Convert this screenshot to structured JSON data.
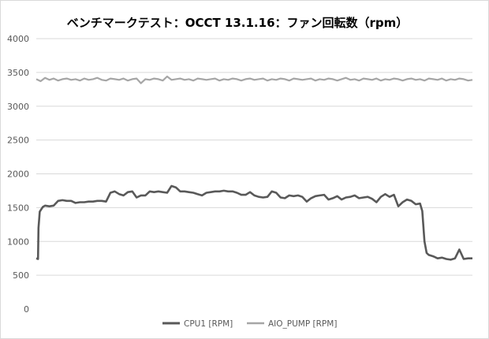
{
  "chart_data": {
    "type": "line",
    "title": "ベンチマークテスト：OCCT 13.1.16：ファン回転数（rpm）",
    "xlabel": "",
    "ylabel": "",
    "ylim": [
      0,
      4000
    ],
    "yticks": [
      0,
      500,
      1000,
      1500,
      2000,
      2500,
      3000,
      3500,
      4000
    ],
    "grid": "horizontal",
    "legend": "bottom",
    "x_range": [
      0,
      100
    ],
    "series": [
      {
        "name": "CPU1 [RPM]",
        "color": "#595959",
        "x": [
          0,
          0.4,
          0.5,
          0.8,
          1.2,
          1.5,
          2,
          3,
          4,
          5,
          6,
          7,
          8,
          9,
          10,
          11,
          12,
          13,
          14,
          15,
          16,
          17,
          18,
          19,
          20,
          21,
          22,
          23,
          24,
          25,
          26,
          27,
          28,
          29,
          30,
          31,
          32,
          33,
          34,
          35,
          36,
          37,
          38,
          39,
          40,
          41,
          42,
          43,
          44,
          45,
          46,
          47,
          48,
          49,
          50,
          51,
          52,
          53,
          54,
          55,
          56,
          57,
          58,
          59,
          60,
          61,
          62,
          63,
          64,
          65,
          66,
          67,
          68,
          69,
          70,
          71,
          72,
          73,
          74,
          75,
          76,
          77,
          78,
          79,
          80,
          81,
          82,
          83,
          84,
          85,
          86,
          87,
          88,
          88.5,
          89,
          89.5,
          90,
          91,
          92,
          93,
          94,
          95,
          96,
          97,
          98,
          99,
          100
        ],
        "values": [
          750,
          740,
          1200,
          1440,
          1480,
          1510,
          1530,
          1520,
          1530,
          1600,
          1610,
          1600,
          1600,
          1570,
          1580,
          1580,
          1590,
          1590,
          1600,
          1600,
          1590,
          1720,
          1740,
          1700,
          1680,
          1730,
          1740,
          1650,
          1680,
          1680,
          1740,
          1730,
          1740,
          1730,
          1720,
          1820,
          1800,
          1740,
          1740,
          1730,
          1720,
          1700,
          1680,
          1720,
          1730,
          1740,
          1740,
          1750,
          1740,
          1740,
          1720,
          1690,
          1690,
          1730,
          1680,
          1660,
          1650,
          1660,
          1740,
          1720,
          1650,
          1640,
          1680,
          1670,
          1680,
          1660,
          1590,
          1640,
          1670,
          1680,
          1690,
          1620,
          1640,
          1670,
          1620,
          1650,
          1660,
          1680,
          1640,
          1650,
          1660,
          1630,
          1580,
          1660,
          1700,
          1660,
          1690,
          1520,
          1580,
          1620,
          1600,
          1550,
          1560,
          1450,
          1000,
          830,
          800,
          780,
          750,
          760,
          740,
          730,
          750,
          880,
          740,
          750,
          750
        ]
      },
      {
        "name": "AIO_PUMP [RPM]",
        "color": "#a6a6a6",
        "x": [
          0,
          1,
          2,
          3,
          4,
          5,
          6,
          7,
          8,
          9,
          10,
          11,
          12,
          13,
          14,
          15,
          16,
          17,
          18,
          19,
          20,
          21,
          22,
          23,
          24,
          25,
          26,
          27,
          28,
          29,
          30,
          31,
          32,
          33,
          34,
          35,
          36,
          37,
          38,
          39,
          40,
          41,
          42,
          43,
          44,
          45,
          46,
          47,
          48,
          49,
          50,
          51,
          52,
          53,
          54,
          55,
          56,
          57,
          58,
          59,
          60,
          61,
          62,
          63,
          64,
          65,
          66,
          67,
          68,
          69,
          70,
          71,
          72,
          73,
          74,
          75,
          76,
          77,
          78,
          79,
          80,
          81,
          82,
          83,
          84,
          85,
          86,
          87,
          88,
          89,
          90,
          91,
          92,
          93,
          94,
          95,
          96,
          97,
          98,
          99,
          100
        ],
        "values": [
          3400,
          3370,
          3420,
          3390,
          3410,
          3380,
          3400,
          3410,
          3390,
          3400,
          3380,
          3410,
          3390,
          3400,
          3420,
          3390,
          3380,
          3410,
          3400,
          3390,
          3410,
          3380,
          3400,
          3410,
          3340,
          3400,
          3390,
          3410,
          3400,
          3380,
          3440,
          3390,
          3400,
          3410,
          3390,
          3400,
          3380,
          3410,
          3400,
          3390,
          3400,
          3410,
          3380,
          3400,
          3390,
          3410,
          3400,
          3380,
          3400,
          3410,
          3390,
          3400,
          3410,
          3380,
          3400,
          3390,
          3410,
          3400,
          3380,
          3410,
          3400,
          3390,
          3400,
          3410,
          3380,
          3400,
          3390,
          3410,
          3400,
          3380,
          3400,
          3420,
          3390,
          3400,
          3380,
          3410,
          3400,
          3390,
          3410,
          3380,
          3400,
          3390,
          3410,
          3400,
          3380,
          3400,
          3410,
          3390,
          3400,
          3380,
          3410,
          3400,
          3390,
          3410,
          3380,
          3400,
          3390,
          3410,
          3400,
          3380,
          3390
        ]
      }
    ]
  }
}
